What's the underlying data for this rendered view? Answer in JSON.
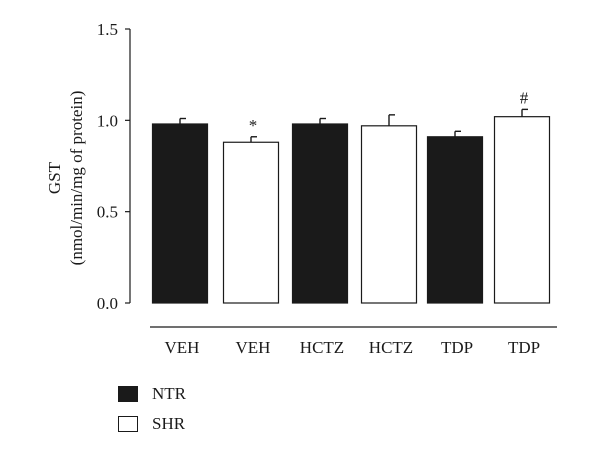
{
  "chart_data": {
    "type": "bar",
    "ylabel": [
      "GST",
      "(nmol/min/mg of protein)"
    ],
    "ylim": [
      0,
      1.5
    ],
    "yticks": [
      "0.0",
      "0.5",
      "1.0",
      "1.5"
    ],
    "categories": [
      "VEH",
      "VEH",
      "HCTZ",
      "HCTZ",
      "TDP",
      "TDP"
    ],
    "values": [
      0.98,
      0.88,
      0.98,
      0.97,
      0.91,
      1.02
    ],
    "errors": [
      0.03,
      0.03,
      0.03,
      0.06,
      0.03,
      0.04
    ],
    "groups": [
      "NTR",
      "SHR",
      "NTR",
      "SHR",
      "NTR",
      "SHR"
    ],
    "annotations": [
      "",
      "*",
      "",
      "",
      "",
      "#"
    ],
    "legend": [
      {
        "name": "NTR",
        "color": "#1a1a1a"
      },
      {
        "name": "SHR",
        "color": "#ffffff"
      }
    ],
    "legend_position": "bottom-left",
    "grid": false
  }
}
